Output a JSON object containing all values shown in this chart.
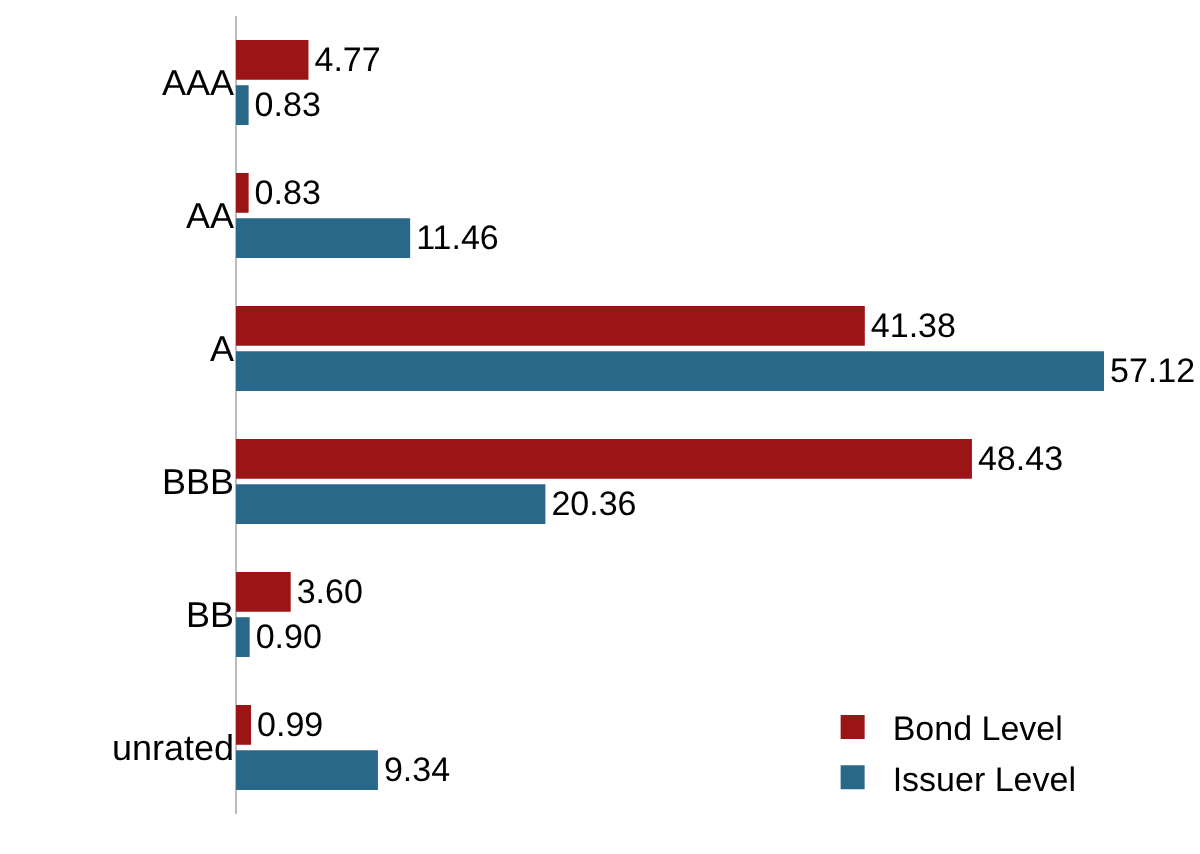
{
  "chart_data": {
    "type": "bar",
    "orientation": "horizontal",
    "categories": [
      "AAA",
      "AA",
      "A",
      "BBB",
      "BB",
      "unrated"
    ],
    "series": [
      {
        "name": "Bond Level",
        "color": "#9c1516",
        "values": [
          4.77,
          0.83,
          41.38,
          48.43,
          3.6,
          0.99
        ],
        "value_labels": [
          "4.77",
          "0.83",
          "41.38",
          "48.43",
          "3.60",
          "0.99"
        ]
      },
      {
        "name": "Issuer Level",
        "color": "#2a6889",
        "values": [
          0.83,
          11.46,
          57.12,
          20.36,
          0.9,
          9.34
        ],
        "value_labels": [
          "0.83",
          "11.46",
          "57.12",
          "20.36",
          "0.90",
          "9.34"
        ]
      }
    ],
    "legend": "bottom right",
    "grid": false
  }
}
